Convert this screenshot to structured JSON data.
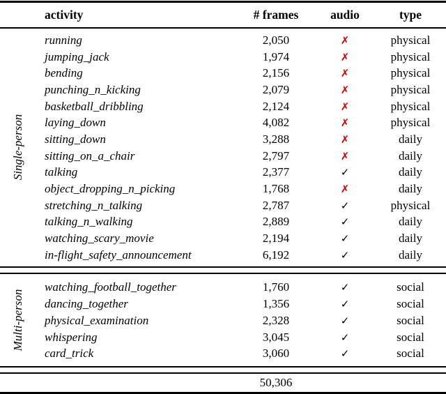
{
  "table": {
    "headers": {
      "activity": "activity",
      "frames": "# frames",
      "audio": "audio",
      "type": "type"
    },
    "marks": {
      "yes": "✓",
      "no": "✗"
    },
    "colors": {
      "yes_mark": "#000000",
      "no_mark": "#cc0000",
      "rule": "#000000"
    },
    "sections": [
      {
        "label": "Single-person",
        "rows": [
          {
            "activity": "running",
            "frames": "2,050",
            "audio": "no",
            "type": "physical"
          },
          {
            "activity": "jumping_jack",
            "frames": "1,974",
            "audio": "no",
            "type": "physical"
          },
          {
            "activity": "bending",
            "frames": "2,156",
            "audio": "no",
            "type": "physical"
          },
          {
            "activity": "punching_n_kicking",
            "frames": "2,079",
            "audio": "no",
            "type": "physical"
          },
          {
            "activity": "basketball_dribbling",
            "frames": "2,124",
            "audio": "no",
            "type": "physical"
          },
          {
            "activity": "laying_down",
            "frames": "4,082",
            "audio": "no",
            "type": "physical"
          },
          {
            "activity": "sitting_down",
            "frames": "3,288",
            "audio": "no",
            "type": "daily"
          },
          {
            "activity": "sitting_on_a_chair",
            "frames": "2,797",
            "audio": "no",
            "type": "daily"
          },
          {
            "activity": "talking",
            "frames": "2,377",
            "audio": "yes",
            "type": "daily"
          },
          {
            "activity": "object_dropping_n_picking",
            "frames": "1,768",
            "audio": "no",
            "type": "daily"
          },
          {
            "activity": "stretching_n_talking",
            "frames": "2,787",
            "audio": "yes",
            "type": "physical"
          },
          {
            "activity": "talking_n_walking",
            "frames": "2,889",
            "audio": "yes",
            "type": "daily"
          },
          {
            "activity": "watching_scary_movie",
            "frames": "2,194",
            "audio": "yes",
            "type": "daily"
          },
          {
            "activity": "in-flight_safety_announcement",
            "frames": "6,192",
            "audio": "yes",
            "type": "daily"
          }
        ]
      },
      {
        "label": "Multi-person",
        "rows": [
          {
            "activity": "watching_football_together",
            "frames": "1,760",
            "audio": "yes",
            "type": "social"
          },
          {
            "activity": "dancing_together",
            "frames": "1,356",
            "audio": "yes",
            "type": "social"
          },
          {
            "activity": "physical_examination",
            "frames": "2,328",
            "audio": "yes",
            "type": "social"
          },
          {
            "activity": "whispering",
            "frames": "3,045",
            "audio": "yes",
            "type": "social"
          },
          {
            "activity": "card_trick",
            "frames": "3,060",
            "audio": "yes",
            "type": "social"
          }
        ]
      }
    ],
    "total_frames": "50,306"
  }
}
